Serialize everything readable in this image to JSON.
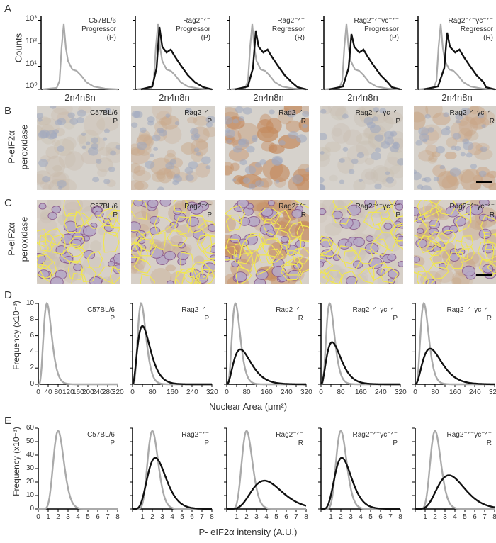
{
  "panel_letters": [
    "A",
    "B",
    "C",
    "D",
    "E"
  ],
  "panelA": {
    "ylabel": "Counts",
    "yticks": [
      "10⁰",
      "10¹",
      "10²",
      "10³"
    ],
    "xtick": "2n4n8n",
    "subplots": [
      {
        "line1": "C57BL/6",
        "line2": "Progressor",
        "line3": "(P)"
      },
      {
        "line1": "Rag2⁻ᐟ⁻",
        "line2": "Progressor",
        "line3": "(P)"
      },
      {
        "line1": "Rag2⁻ᐟ⁻",
        "line2": "Regressor",
        "line3": "(R)"
      },
      {
        "line1": "Rag2⁻ᐟ⁻γc⁻ᐟ⁻",
        "line2": "Progressor",
        "line3": "(P)"
      },
      {
        "line1": "Rag2⁻ᐟ⁻γc⁻ᐟ⁻",
        "line2": "Regressor",
        "line3": "(R)"
      }
    ]
  },
  "panelB": {
    "ylabel1": "P-eIF2α",
    "ylabel2": "peroxidase",
    "tiles": [
      {
        "l1": "C57BL/6",
        "l2": "P",
        "stain": "#c8b9a8"
      },
      {
        "l1": "Rag2⁻ᐟ⁻",
        "l2": "P",
        "stain": "#c9a88a"
      },
      {
        "l1": "Rag2⁻ᐟ⁻",
        "l2": "R",
        "stain": "#c48a5e"
      },
      {
        "l1": "Rag2⁻ᐟ⁻γc⁻ᐟ⁻",
        "l2": "P",
        "stain": "#c7bcae"
      },
      {
        "l1": "Rag2⁻ᐟ⁻γc⁻ᐟ⁻",
        "l2": "R",
        "stain": "#c9a382"
      }
    ]
  },
  "panelC": {
    "ylabel1": "P-eIF2α",
    "ylabel2": "peroxidase",
    "tiles": [
      {
        "l1": "C57BL/6",
        "l2": "P",
        "stain": "#c9bcae"
      },
      {
        "l1": "Rag2⁻ᐟ⁻",
        "l2": "P",
        "stain": "#c9a98c"
      },
      {
        "l1": "Rag2⁻ᐟ⁻",
        "l2": "R",
        "stain": "#c68d60"
      },
      {
        "l1": "Rag2⁻ᐟ⁻γc⁻ᐟ⁻",
        "l2": "P",
        "stain": "#c9bfb2"
      },
      {
        "l1": "Rag2⁻ᐟ⁻γc⁻ᐟ⁻",
        "l2": "R",
        "stain": "#c9a584"
      }
    ]
  },
  "panelD": {
    "ylabel1": "Frequency (x10⁻³)",
    "xlabel": "Nuclear Area (μm²)",
    "yticks": [
      "0",
      "2",
      "4",
      "6",
      "8",
      "10"
    ],
    "xticks": [
      "0",
      "80",
      "160",
      "240",
      "320"
    ],
    "xticks_first": [
      "0",
      "40",
      "80",
      "120",
      "160",
      "200",
      "240",
      "280",
      "320"
    ],
    "subplots": [
      {
        "l1": "C57BL/6",
        "l2": "P"
      },
      {
        "l1": "Rag2⁻ᐟ⁻",
        "l2": "P"
      },
      {
        "l1": "Rag2⁻ᐟ⁻",
        "l2": "R"
      },
      {
        "l1": "Rag2⁻ᐟ⁻γc⁻ᐟ⁻",
        "l2": "P"
      },
      {
        "l1": "Rag2⁻ᐟ⁻γc⁻ᐟ⁻",
        "l2": "R"
      }
    ]
  },
  "panelE": {
    "ylabel1": "Frequency (x10⁻³)",
    "xlabel": "P- eIF2α intensity (A.U.)",
    "yticks": [
      "0",
      "10",
      "20",
      "30",
      "40",
      "50",
      "60"
    ],
    "xticks_first": [
      "0",
      "1",
      "2",
      "3",
      "4",
      "5",
      "6",
      "7",
      "8"
    ],
    "xticks": [
      "1",
      "2",
      "3",
      "4",
      "5",
      "6",
      "7",
      "8"
    ],
    "subplots": [
      {
        "l1": "C57BL/6",
        "l2": "P"
      },
      {
        "l1": "Rag2⁻ᐟ⁻",
        "l2": "P"
      },
      {
        "l1": "Rag2⁻ᐟ⁻",
        "l2": "R"
      },
      {
        "l1": "Rag2⁻ᐟ⁻γc⁻ᐟ⁻",
        "l2": "P"
      },
      {
        "l1": "Rag2⁻ᐟ⁻γc⁻ᐟ⁻",
        "l2": "R"
      }
    ]
  },
  "chart_data": [
    {
      "type": "line",
      "panel": "D",
      "xlabel": "Nuclear Area (μm²)",
      "ylabel": "Frequency (x10⁻³)",
      "xlim": [
        0,
        320
      ],
      "ylim": [
        0,
        10
      ],
      "reference_series": {
        "name": "",
        "color": "#aaaaaa",
        "peak_x": 35,
        "peak_y": 10
      },
      "series": [
        {
          "panel": "C57BL/6 P",
          "peak_x": null,
          "peak_y": null
        },
        {
          "panel": "Rag2-/- P",
          "color": "#111111",
          "peak_x": 40,
          "peak_y": 7.2
        },
        {
          "panel": "Rag2-/- R",
          "color": "#111111",
          "peak_x": 55,
          "peak_y": 4.3
        },
        {
          "panel": "Rag2-/-γc-/- P",
          "color": "#111111",
          "peak_x": 45,
          "peak_y": 5.2
        },
        {
          "panel": "Rag2-/-γc-/- R",
          "color": "#111111",
          "peak_x": 60,
          "peak_y": 4.4
        }
      ]
    },
    {
      "type": "line",
      "panel": "E",
      "xlabel": "P- eIF2α intensity (A.U.)",
      "ylabel": "Frequency (x10⁻³)",
      "xlim": [
        0,
        8
      ],
      "ylim": [
        0,
        60
      ],
      "reference_series": {
        "name": "",
        "color": "#aaaaaa",
        "peak_x": 2.0,
        "peak_y": 58
      },
      "series": [
        {
          "panel": "C57BL/6 P",
          "peak_x": null,
          "peak_y": null
        },
        {
          "panel": "Rag2-/- P",
          "color": "#111111",
          "peak_x": 2.3,
          "peak_y": 38
        },
        {
          "panel": "Rag2-/- R",
          "color": "#111111",
          "peak_x": 3.8,
          "peak_y": 21
        },
        {
          "panel": "Rag2-/-γc-/- P",
          "color": "#111111",
          "peak_x": 2.1,
          "peak_y": 38
        },
        {
          "panel": "Rag2-/-γc-/- R",
          "color": "#111111",
          "peak_x": 3.4,
          "peak_y": 25
        }
      ]
    }
  ]
}
